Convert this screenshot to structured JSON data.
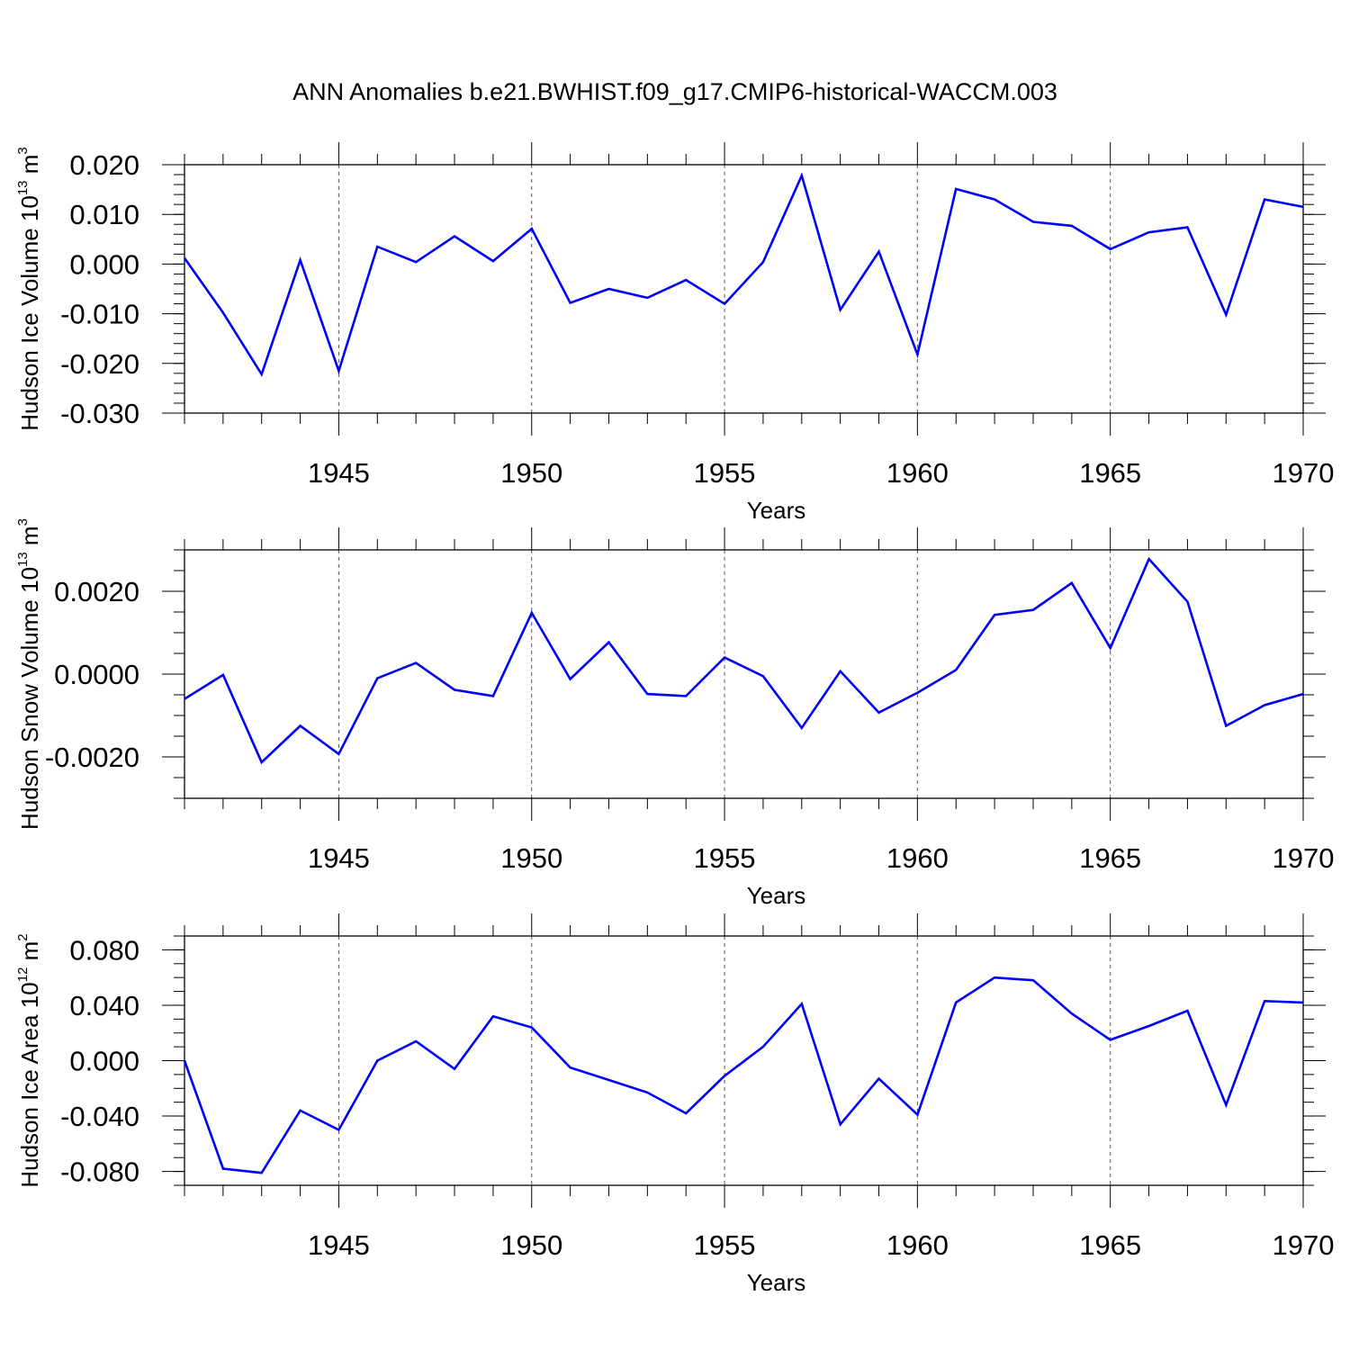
{
  "title": "ANN Anomalies b.e21.BWHIST.f09_g17.CMIP6-historical-WACCM.003",
  "colors": {
    "line": "#0000ff",
    "axis": "#000000",
    "grid": "#555555"
  },
  "chart_data": [
    {
      "type": "line",
      "ylabel": {
        "text": "Hudson Ice Volume 10",
        "sup": "13",
        "unit": "m",
        "unit_sup": "3"
      },
      "xlabel": "Years",
      "xlim": [
        1941,
        1970
      ],
      "ylim": [
        -0.03,
        0.02
      ],
      "x_ticks": [
        "1945",
        "1950",
        "1955",
        "1960",
        "1965",
        "1970"
      ],
      "y_ticks": [
        "0.020",
        "0.010",
        "0.000",
        "-0.010",
        "-0.020",
        "-0.030"
      ],
      "y_tick_values": [
        0.02,
        0.01,
        0.0,
        -0.01,
        -0.02,
        -0.03
      ],
      "y_minor_step": 0.002,
      "grid": "vertical dashed at major x ticks",
      "x": [
        1941,
        1942,
        1943,
        1944,
        1945,
        1946,
        1947,
        1948,
        1949,
        1950,
        1951,
        1952,
        1953,
        1954,
        1955,
        1956,
        1957,
        1958,
        1959,
        1960,
        1961,
        1962,
        1963,
        1964,
        1965,
        1966,
        1967,
        1968,
        1969,
        1970
      ],
      "values": [
        0.0012,
        -0.0098,
        -0.0222,
        0.0008,
        -0.0215,
        0.0035,
        0.0004,
        0.0056,
        0.0006,
        0.0071,
        -0.0078,
        -0.005,
        -0.0068,
        -0.0032,
        -0.008,
        0.0004,
        0.0178,
        -0.0092,
        0.0025,
        -0.0182,
        0.0151,
        0.013,
        0.0085,
        0.0077,
        0.003,
        0.0064,
        0.0074,
        -0.0102,
        0.013,
        0.0115
      ]
    },
    {
      "type": "line",
      "ylabel": {
        "text": "Hudson Snow Volume 10",
        "sup": "13",
        "unit": "m",
        "unit_sup": "3"
      },
      "xlabel": "Years",
      "xlim": [
        1941,
        1970
      ],
      "ylim": [
        -0.003,
        0.003
      ],
      "x_ticks": [
        "1945",
        "1950",
        "1955",
        "1960",
        "1965",
        "1970"
      ],
      "y_ticks": [
        "0.0020",
        "0.0000",
        "-0.0020"
      ],
      "y_tick_values": [
        0.002,
        0.0,
        -0.002
      ],
      "y_minor_step": 0.0005,
      "grid": "vertical dashed at major x ticks",
      "x": [
        1941,
        1942,
        1943,
        1944,
        1945,
        1946,
        1947,
        1948,
        1949,
        1950,
        1951,
        1952,
        1953,
        1954,
        1955,
        1956,
        1957,
        1958,
        1959,
        1960,
        1961,
        1962,
        1963,
        1964,
        1965,
        1966,
        1967,
        1968,
        1969,
        1970
      ],
      "values": [
        -0.0006,
        -2e-05,
        -0.00213,
        -0.00125,
        -0.00193,
        -0.0001,
        0.00027,
        -0.00038,
        -0.00053,
        0.00148,
        -0.00012,
        0.00077,
        -0.00048,
        -0.00053,
        0.0004,
        -5e-05,
        -0.0013,
        7e-05,
        -0.00093,
        -0.00045,
        0.0001,
        0.00143,
        0.00155,
        0.0022,
        0.00063,
        0.00278,
        0.00175,
        -0.00125,
        -0.00075,
        -0.00048
      ]
    },
    {
      "type": "line",
      "ylabel": {
        "text": "Hudson Ice Area 10",
        "sup": "12",
        "unit": "m",
        "unit_sup": "2"
      },
      "xlabel": "Years",
      "xlim": [
        1941,
        1970
      ],
      "ylim": [
        -0.09,
        0.09
      ],
      "x_ticks": [
        "1945",
        "1950",
        "1955",
        "1960",
        "1965",
        "1970"
      ],
      "y_ticks": [
        "0.080",
        "0.040",
        "0.000",
        "-0.040",
        "-0.080"
      ],
      "y_tick_values": [
        0.08,
        0.04,
        0.0,
        -0.04,
        -0.08
      ],
      "y_minor_step": 0.01,
      "grid": "vertical dashed at major x ticks",
      "x": [
        1941,
        1942,
        1943,
        1944,
        1945,
        1946,
        1947,
        1948,
        1949,
        1950,
        1951,
        1952,
        1953,
        1954,
        1955,
        1956,
        1957,
        1958,
        1959,
        1960,
        1961,
        1962,
        1963,
        1964,
        1965,
        1966,
        1967,
        1968,
        1969,
        1970
      ],
      "values": [
        0.0,
        -0.078,
        -0.081,
        -0.036,
        -0.05,
        0.0,
        0.014,
        -0.006,
        0.032,
        0.024,
        -0.005,
        -0.014,
        -0.023,
        -0.038,
        -0.011,
        0.01,
        0.041,
        -0.046,
        -0.013,
        -0.039,
        0.042,
        0.06,
        0.058,
        0.034,
        0.015,
        0.025,
        0.036,
        -0.032,
        0.043,
        0.042
      ]
    }
  ]
}
